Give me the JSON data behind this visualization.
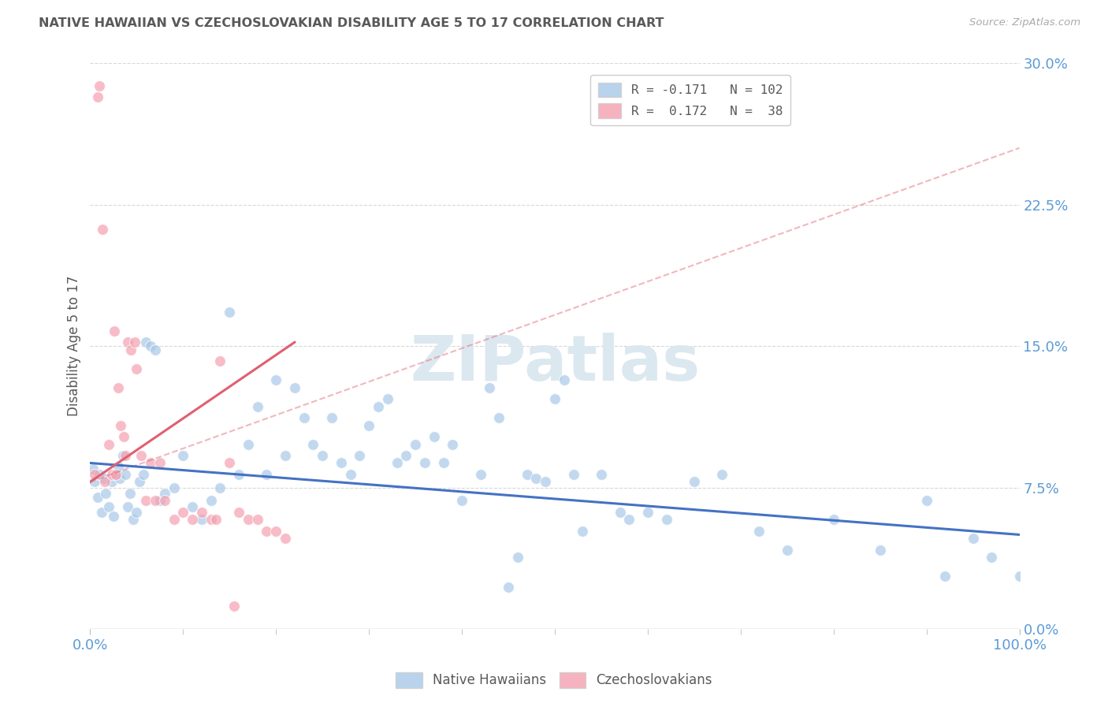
{
  "title": "NATIVE HAWAIIAN VS CZECHOSLOVAKIAN DISABILITY AGE 5 TO 17 CORRELATION CHART",
  "source": "Source: ZipAtlas.com",
  "ylabel": "Disability Age 5 to 17",
  "ytick_values": [
    0.0,
    7.5,
    15.0,
    22.5,
    30.0
  ],
  "xlim": [
    0.0,
    100.0
  ],
  "ylim": [
    0.0,
    30.0
  ],
  "blue_color": "#a8c8e8",
  "pink_color": "#f4a0b0",
  "blue_line_color": "#4472c4",
  "pink_line_color": "#e06070",
  "axis_label_color": "#5b9bd5",
  "title_color": "#595959",
  "watermark_color": "#dce8f0",
  "grid_color": "#d8d8d8",
  "blue_scatter_x": [
    0.3,
    0.5,
    0.8,
    1.0,
    1.2,
    1.5,
    1.7,
    2.0,
    2.3,
    2.5,
    2.7,
    3.0,
    3.2,
    3.5,
    3.8,
    4.0,
    4.3,
    4.6,
    5.0,
    5.3,
    5.7,
    6.0,
    6.5,
    7.0,
    7.5,
    8.0,
    9.0,
    10.0,
    11.0,
    12.0,
    13.0,
    14.0,
    15.0,
    16.0,
    17.0,
    18.0,
    19.0,
    20.0,
    21.0,
    22.0,
    23.0,
    24.0,
    25.0,
    26.0,
    27.0,
    28.0,
    29.0,
    30.0,
    31.0,
    32.0,
    33.0,
    34.0,
    35.0,
    36.0,
    37.0,
    38.0,
    39.0,
    40.0,
    42.0,
    43.0,
    44.0,
    45.0,
    46.0,
    47.0,
    48.0,
    49.0,
    50.0,
    51.0,
    52.0,
    53.0,
    55.0,
    57.0,
    58.0,
    60.0,
    62.0,
    65.0,
    68.0,
    72.0,
    75.0,
    80.0,
    85.0,
    90.0,
    92.0,
    95.0,
    97.0,
    100.0
  ],
  "blue_scatter_y": [
    8.5,
    7.8,
    7.0,
    8.2,
    6.2,
    8.0,
    7.2,
    6.5,
    7.8,
    6.0,
    8.2,
    8.6,
    8.0,
    9.2,
    8.2,
    6.5,
    7.2,
    5.8,
    6.2,
    7.8,
    8.2,
    15.2,
    15.0,
    14.8,
    6.8,
    7.2,
    7.5,
    9.2,
    6.5,
    5.8,
    6.8,
    7.5,
    16.8,
    8.2,
    9.8,
    11.8,
    8.2,
    13.2,
    9.2,
    12.8,
    11.2,
    9.8,
    9.2,
    11.2,
    8.8,
    8.2,
    9.2,
    10.8,
    11.8,
    12.2,
    8.8,
    9.2,
    9.8,
    8.8,
    10.2,
    8.8,
    9.8,
    6.8,
    8.2,
    12.8,
    11.2,
    2.2,
    3.8,
    8.2,
    8.0,
    7.8,
    12.2,
    13.2,
    8.2,
    5.2,
    8.2,
    6.2,
    5.8,
    6.2,
    5.8,
    7.8,
    8.2,
    5.2,
    4.2,
    5.8,
    4.2,
    6.8,
    2.8,
    4.8,
    3.8,
    2.8
  ],
  "pink_scatter_x": [
    0.5,
    0.8,
    1.0,
    1.3,
    1.6,
    2.0,
    2.3,
    2.6,
    3.0,
    3.3,
    3.6,
    4.0,
    4.4,
    5.0,
    5.5,
    6.0,
    7.0,
    8.0,
    9.0,
    10.0,
    11.0,
    12.0,
    13.0,
    14.0,
    15.0,
    16.0,
    17.0,
    18.0,
    19.0,
    20.0,
    21.0,
    2.8,
    3.8,
    4.8,
    6.5,
    7.5,
    13.5,
    15.5
  ],
  "pink_scatter_y": [
    8.2,
    28.2,
    28.8,
    21.2,
    7.8,
    9.8,
    8.2,
    15.8,
    12.8,
    10.8,
    10.2,
    15.2,
    14.8,
    13.8,
    9.2,
    6.8,
    6.8,
    6.8,
    5.8,
    6.2,
    5.8,
    6.2,
    5.8,
    14.2,
    8.8,
    6.2,
    5.8,
    5.8,
    5.2,
    5.2,
    4.8,
    8.2,
    9.2,
    15.2,
    8.8,
    8.8,
    5.8,
    1.2
  ],
  "blue_trend_x": [
    0.0,
    100.0
  ],
  "blue_trend_y": [
    8.8,
    5.0
  ],
  "pink_solid_trend_x": [
    0.0,
    22.0
  ],
  "pink_solid_trend_y": [
    7.8,
    15.2
  ],
  "pink_dashed_trend_x": [
    0.0,
    100.0
  ],
  "pink_dashed_trend_y": [
    7.8,
    25.5
  ]
}
